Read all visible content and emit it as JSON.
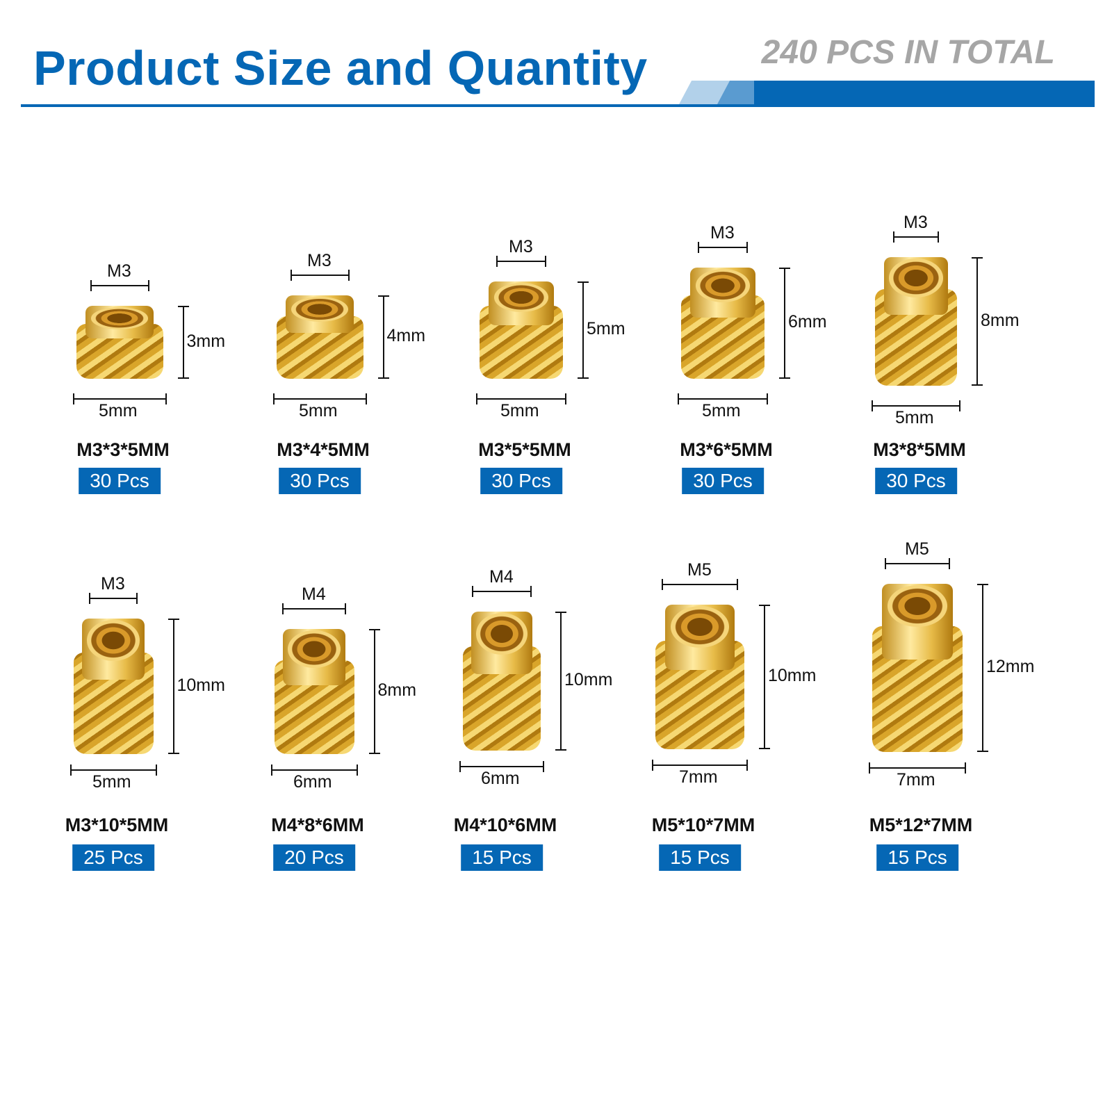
{
  "header": {
    "title": "Product Size and Quantity",
    "total": "240 PCS IN TOTAL"
  },
  "colors": {
    "brand_blue": "#0567b5",
    "total_gray": "#a6a6a6",
    "brass": "#d9a52a"
  },
  "items": [
    {
      "thread": "M3",
      "length": "3mm",
      "diameter": "5mm",
      "name": "M3*3*5MM",
      "qty": "30 Pcs"
    },
    {
      "thread": "M3",
      "length": "4mm",
      "diameter": "5mm",
      "name": "M3*4*5MM",
      "qty": "30 Pcs"
    },
    {
      "thread": "M3",
      "length": "5mm",
      "diameter": "5mm",
      "name": "M3*5*5MM",
      "qty": "30 Pcs"
    },
    {
      "thread": "M3",
      "length": "6mm",
      "diameter": "5mm",
      "name": "M3*6*5MM",
      "qty": "30 Pcs"
    },
    {
      "thread": "M3",
      "length": "8mm",
      "diameter": "5mm",
      "name": "M3*8*5MM",
      "qty": "30 Pcs"
    },
    {
      "thread": "M3",
      "length": "10mm",
      "diameter": "5mm",
      "name": "M3*10*5MM",
      "qty": "25 Pcs"
    },
    {
      "thread": "M4",
      "length": "8mm",
      "diameter": "6mm",
      "name": "M4*8*6MM",
      "qty": "20 Pcs"
    },
    {
      "thread": "M4",
      "length": "10mm",
      "diameter": "6mm",
      "name": "M4*10*6MM",
      "qty": "15 Pcs"
    },
    {
      "thread": "M5",
      "length": "10mm",
      "diameter": "7mm",
      "name": "M5*10*7MM",
      "qty": "15 Pcs"
    },
    {
      "thread": "M5",
      "length": "12mm",
      "diameter": "7mm",
      "name": "M5*12*7MM",
      "qty": "15 Pcs"
    }
  ]
}
